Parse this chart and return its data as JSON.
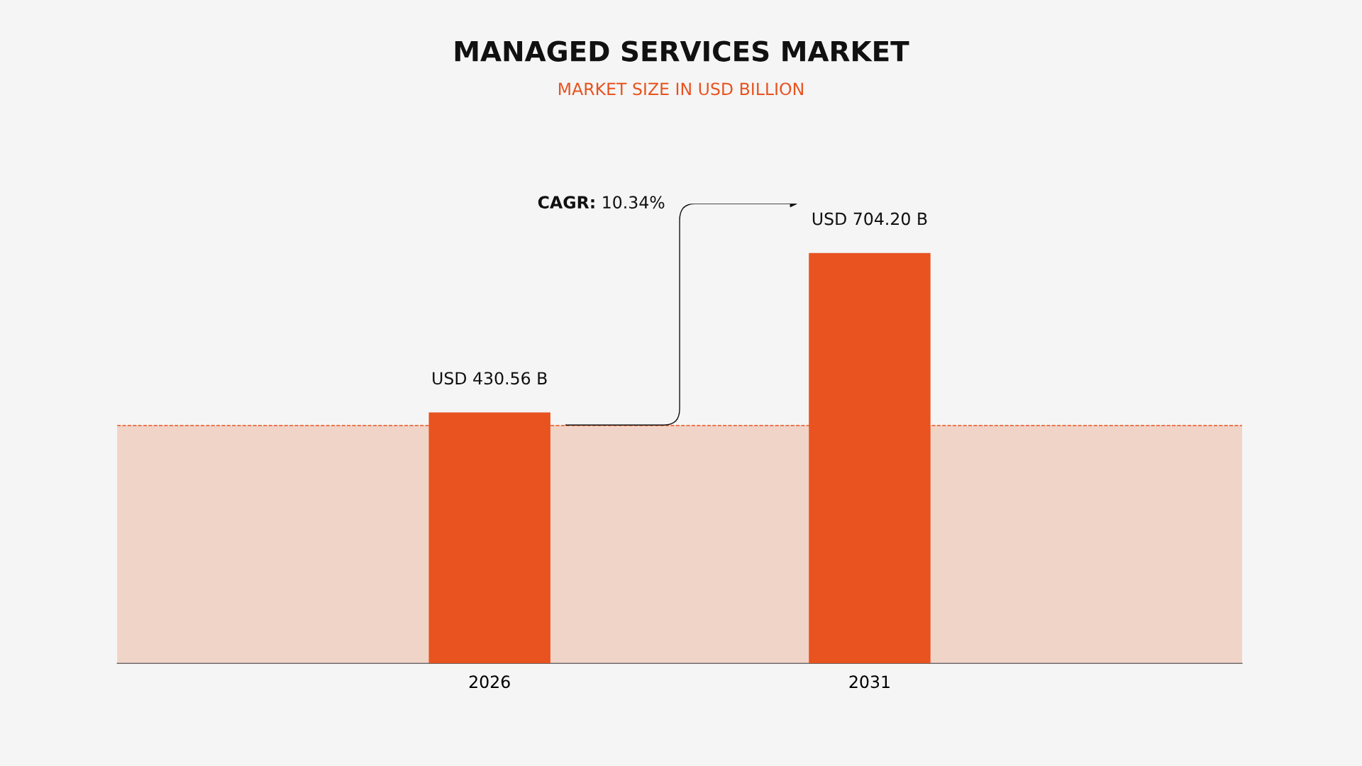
{
  "chart_data": {
    "type": "bar",
    "title": "MANAGED SERVICES MARKET",
    "subtitle": "MARKET SIZE IN USD BILLION",
    "categories": [
      "2026",
      "2031"
    ],
    "values": [
      430.56,
      704.2
    ],
    "value_labels": [
      "USD 430.56 B",
      "USD 704.20 B"
    ],
    "color": "#e8531f",
    "bands": [
      {
        "axis": "y",
        "from": 0,
        "to": 408,
        "color": "#f1d4c8"
      }
    ],
    "ref_lines": [
      {
        "axis": "y",
        "value": 408,
        "color": "#e8531f",
        "line_style": "dashed"
      }
    ],
    "annotations": [
      "CAGR: 10.34%"
    ],
    "grid": false,
    "legend": false
  }
}
